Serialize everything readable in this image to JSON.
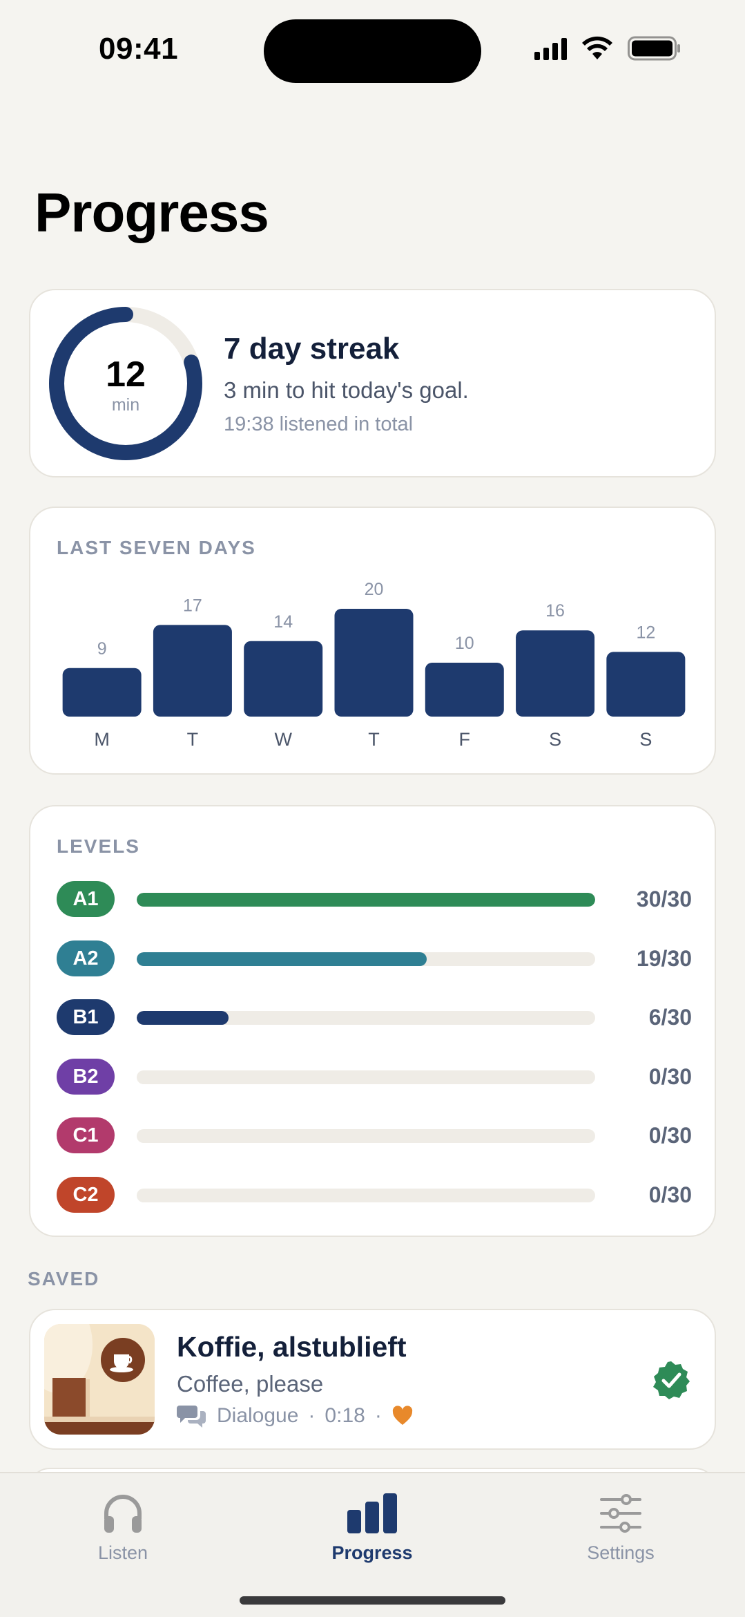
{
  "status_bar": {
    "time": "09:41"
  },
  "page": {
    "title": "Progress"
  },
  "streak": {
    "minutes": "12",
    "unit": "min",
    "goal_fraction": 0.8,
    "title": "7 day streak",
    "subtitle": "3 min to hit today's goal.",
    "total": "19:38 listened in total"
  },
  "weekly": {
    "label": "LAST SEVEN DAYS",
    "chart_data": {
      "type": "bar",
      "categories": [
        "M",
        "T",
        "W",
        "T",
        "F",
        "S",
        "S"
      ],
      "values": [
        9,
        17,
        14,
        20,
        10,
        16,
        12
      ],
      "bar_color": "#1e3a6e"
    }
  },
  "levels": {
    "label": "LEVELS",
    "items": [
      {
        "code": "A1",
        "count": "30/30",
        "progress": 1.0,
        "color": "#2e8b57"
      },
      {
        "code": "A2",
        "count": "19/30",
        "progress": 0.633,
        "color": "#2f7f93"
      },
      {
        "code": "B1",
        "count": "6/30",
        "progress": 0.2,
        "color": "#1e3a6e"
      },
      {
        "code": "B2",
        "count": "0/30",
        "progress": 0,
        "color": "#6f3fa6"
      },
      {
        "code": "C1",
        "count": "0/30",
        "progress": 0,
        "color": "#b23a6c"
      },
      {
        "code": "C2",
        "count": "0/30",
        "progress": 0,
        "color": "#c0452a"
      }
    ]
  },
  "saved": {
    "label": "SAVED",
    "items": [
      {
        "title": "Koffie, alstublieft",
        "subtitle": "Coffee, please",
        "type": "Dialogue",
        "duration": "0:18",
        "dot": "·",
        "favorite": true,
        "verified": true
      }
    ]
  },
  "tabs": [
    {
      "label": "Listen",
      "icon": "headphones-icon",
      "active": false
    },
    {
      "label": "Progress",
      "icon": "bar-chart-icon",
      "active": true
    },
    {
      "label": "Settings",
      "icon": "sliders-icon",
      "active": false
    }
  ],
  "colors": {
    "accent": "#1e3a6e",
    "background": "#f5f4f0",
    "favorite": "#e8892b",
    "verified": "#2e8b57"
  }
}
